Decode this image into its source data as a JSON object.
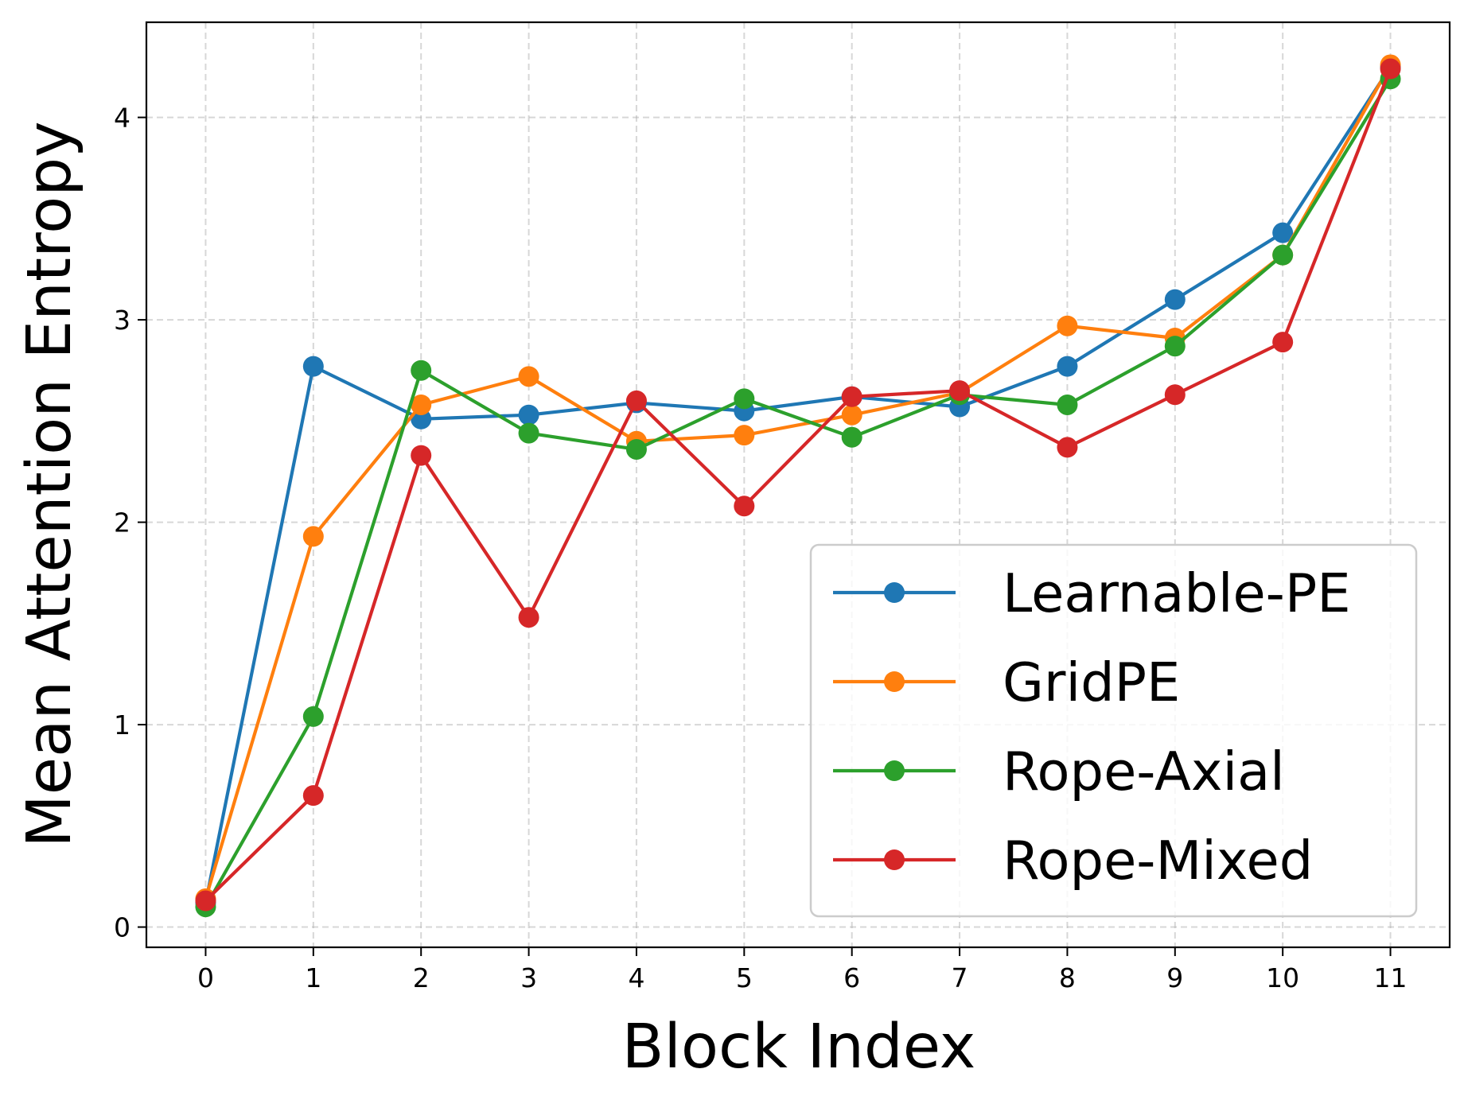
{
  "chart_data": {
    "type": "line",
    "title": "",
    "xlabel": "Block Index",
    "ylabel": "Mean Attention Entropy",
    "x": [
      0,
      1,
      2,
      3,
      4,
      5,
      6,
      7,
      8,
      9,
      10,
      11
    ],
    "x_tick_labels": [
      "0",
      "1",
      "2",
      "3",
      "4",
      "5",
      "6",
      "7",
      "8",
      "9",
      "10",
      "11"
    ],
    "y_ticks": [
      0,
      1,
      2,
      3,
      4
    ],
    "y_tick_labels": [
      "0",
      "1",
      "2",
      "3",
      "4"
    ],
    "xlim": [
      -0.55,
      11.55
    ],
    "ylim": [
      -0.1,
      4.47
    ],
    "grid": true,
    "legend_position": "lower-right",
    "series": [
      {
        "name": "Learnable-PE",
        "color": "#1f77b4",
        "values": [
          0.12,
          2.77,
          2.51,
          2.53,
          2.59,
          2.55,
          2.62,
          2.57,
          2.77,
          3.1,
          3.43,
          4.25
        ]
      },
      {
        "name": "GridPE",
        "color": "#ff7f0e",
        "values": [
          0.14,
          1.93,
          2.58,
          2.72,
          2.4,
          2.43,
          2.53,
          2.64,
          2.97,
          2.91,
          3.32,
          4.26
        ]
      },
      {
        "name": "Rope-Axial",
        "color": "#2ca02c",
        "values": [
          0.1,
          1.04,
          2.75,
          2.44,
          2.36,
          2.61,
          2.42,
          2.63,
          2.58,
          2.87,
          3.32,
          4.19
        ]
      },
      {
        "name": "Rope-Mixed",
        "color": "#d62728",
        "values": [
          0.13,
          0.65,
          2.33,
          1.53,
          2.6,
          2.08,
          2.62,
          2.65,
          2.37,
          2.63,
          2.89,
          4.24
        ]
      }
    ]
  }
}
